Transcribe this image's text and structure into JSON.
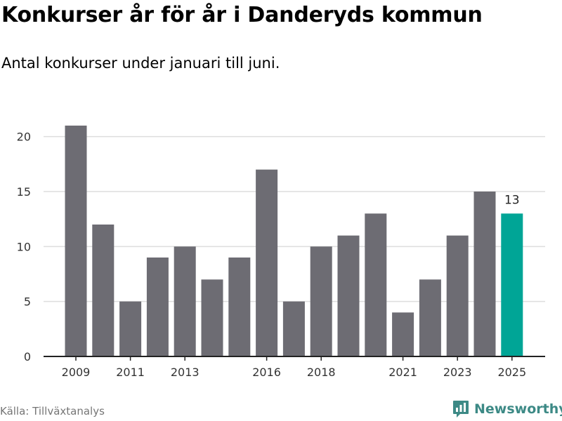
{
  "title": "Konkurser år för år i Danderyds kommun",
  "subtitle": "Antal konkurser under januari till juni.",
  "source": "Källa: Tillväxtanalys",
  "brand": {
    "name": "Newsworthy",
    "icon": "newsworthy-logo-icon",
    "color": "#3d8a86"
  },
  "colors": {
    "bar": "#6d6c73",
    "highlight": "#00a596",
    "grid": "#dddddd",
    "axis": "#222222"
  },
  "chart_data": {
    "type": "bar",
    "title": "Konkurser år för år i Danderyds kommun",
    "subtitle": "Antal konkurser under januari till juni.",
    "xlabel": "",
    "ylabel": "",
    "ylim": [
      0,
      21
    ],
    "yticks": [
      0,
      5,
      10,
      15,
      20
    ],
    "grid": true,
    "categories": [
      "2009",
      "2010",
      "2011",
      "2012",
      "2013",
      "2014",
      "2015",
      "2016",
      "2017",
      "2018",
      "2019",
      "2020",
      "2021",
      "2022",
      "2023",
      "2024",
      "2025"
    ],
    "xtick_labels": [
      "2009",
      "2011",
      "2013",
      "2016",
      "2018",
      "2021",
      "2023",
      "2025"
    ],
    "series": [
      {
        "values": [
          21,
          12,
          5,
          9,
          10,
          7,
          9,
          17,
          5,
          10,
          11,
          13,
          4,
          7,
          11,
          15,
          13
        ]
      }
    ],
    "highlight_index": 16,
    "annotations": [
      {
        "category": "2025",
        "text": "13"
      }
    ]
  }
}
